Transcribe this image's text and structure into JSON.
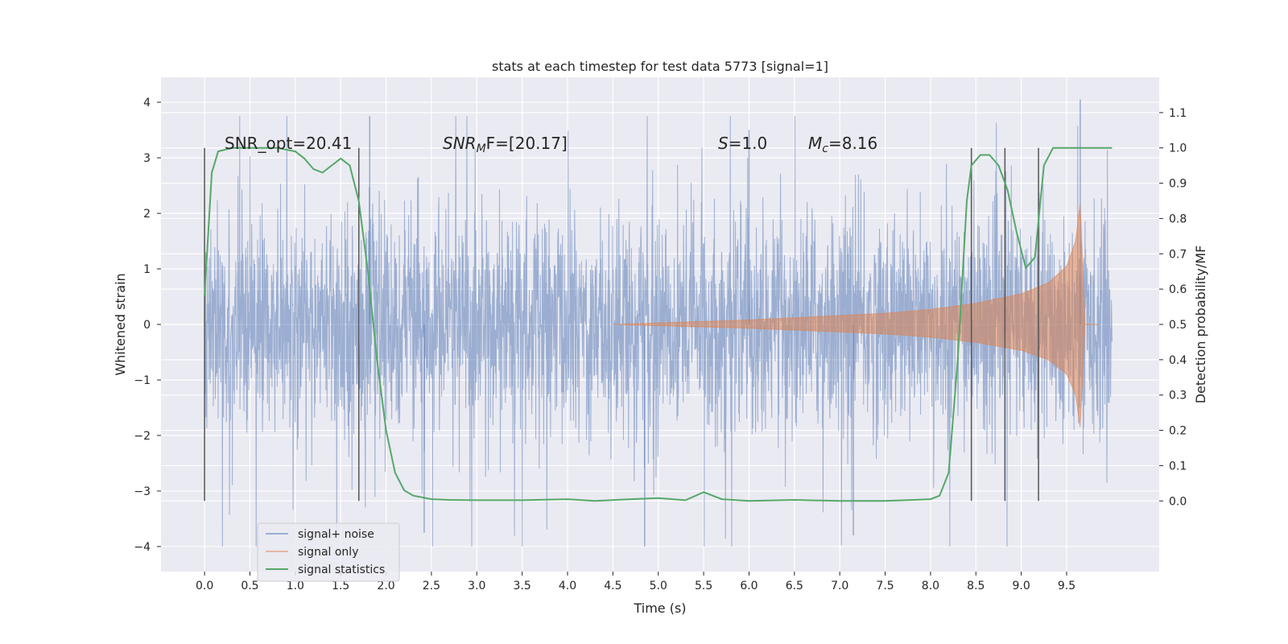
{
  "chart_data": {
    "type": "line",
    "title": "stats at each timestep for test data 5773 [signal=1]",
    "xlabel": "Time (s)",
    "ylabel": "Whitened strain",
    "y2label": "Detection probability/MF",
    "xlim": [
      -0.48,
      10.52
    ],
    "ylim": [
      -4.45,
      4.45
    ],
    "y2lim": [
      -0.2,
      1.2
    ],
    "x_ticks": [
      0.0,
      0.5,
      1.0,
      1.5,
      2.0,
      2.5,
      3.0,
      3.5,
      4.0,
      4.5,
      5.0,
      5.5,
      6.0,
      6.5,
      7.0,
      7.5,
      8.0,
      8.5,
      9.0,
      9.5
    ],
    "x_tick_labels": [
      "0.0",
      "0.5",
      "1.0",
      "1.5",
      "2.0",
      "2.5",
      "3.0",
      "3.5",
      "4.0",
      "4.5",
      "5.0",
      "5.5",
      "6.0",
      "6.5",
      "7.0",
      "7.5",
      "8.0",
      "8.5",
      "9.0",
      "9.5"
    ],
    "y_ticks": [
      4,
      3,
      2,
      1,
      0,
      -1,
      -2,
      -3,
      -4
    ],
    "y_tick_labels": [
      "4",
      "3",
      "2",
      "1",
      "0",
      "−1",
      "−2",
      "−3",
      "−4"
    ],
    "y2_ticks": [
      1.1,
      1.0,
      0.9,
      0.8,
      0.7,
      0.6,
      0.5,
      0.4,
      0.3,
      0.2,
      0.1,
      0.0
    ],
    "y2_tick_labels": [
      "1.1",
      "1.0",
      "0.9",
      "0.8",
      "0.7",
      "0.6",
      "0.5",
      "0.4",
      "0.3",
      "0.2",
      "0.1",
      "0.0"
    ],
    "grid": true,
    "legend": {
      "position": "lower-left"
    },
    "series": [
      {
        "name": "signal+ noise",
        "color": "#4c72b0",
        "axis": "left",
        "x_range": [
          0.0,
          10.0
        ],
        "band_rms": 0.95,
        "peak_max": 4.05,
        "peak_min": -4.0
      },
      {
        "name": "signal only",
        "color": "#dd8452",
        "axis": "left",
        "x_range": [
          4.5,
          9.7
        ],
        "envelope": {
          "t": [
            4.5,
            6.0,
            7.0,
            7.5,
            8.0,
            8.5,
            9.0,
            9.3,
            9.5,
            9.6,
            9.65,
            9.7
          ],
          "amp": [
            0.0,
            0.08,
            0.16,
            0.2,
            0.27,
            0.38,
            0.55,
            0.75,
            1.05,
            1.5,
            2.2,
            0.1
          ]
        }
      },
      {
        "name": "signal statistics",
        "color": "#55a868",
        "axis": "right",
        "x": [
          0.0,
          0.08,
          0.15,
          0.3,
          0.5,
          0.8,
          1.0,
          1.1,
          1.2,
          1.3,
          1.4,
          1.5,
          1.6,
          1.7,
          1.8,
          1.9,
          2.0,
          2.1,
          2.2,
          2.3,
          2.4,
          2.5,
          2.7,
          3.0,
          3.5,
          4.0,
          4.3,
          4.7,
          5.0,
          5.3,
          5.5,
          5.7,
          6.0,
          6.5,
          7.0,
          7.5,
          8.0,
          8.1,
          8.2,
          8.3,
          8.4,
          8.45,
          8.55,
          8.65,
          8.75,
          8.85,
          8.95,
          9.05,
          9.15,
          9.25,
          9.35,
          9.5,
          9.7,
          10.0
        ],
        "y": [
          0.58,
          0.93,
          0.99,
          1.0,
          1.0,
          1.0,
          0.99,
          0.97,
          0.94,
          0.93,
          0.95,
          0.97,
          0.95,
          0.85,
          0.65,
          0.4,
          0.2,
          0.08,
          0.03,
          0.015,
          0.01,
          0.005,
          0.003,
          0.002,
          0.002,
          0.005,
          0.0,
          0.005,
          0.008,
          0.002,
          0.025,
          0.005,
          0.0,
          0.003,
          0.0,
          0.0,
          0.005,
          0.015,
          0.08,
          0.4,
          0.85,
          0.95,
          0.98,
          0.98,
          0.95,
          0.88,
          0.76,
          0.66,
          0.69,
          0.95,
          1.0,
          1.0,
          1.0,
          1.0
        ]
      }
    ],
    "vertical_markers": [
      0.0,
      1.7,
      8.45,
      8.82,
      9.19
    ],
    "annotations": [
      {
        "prefix": "SNR_opt=20.41",
        "italic": "",
        "sub": "",
        "suffix": ""
      },
      {
        "prefix": "",
        "italic": "SNR",
        "sub": "M",
        "suffix": "F=[20.17]"
      },
      {
        "prefix": "",
        "italic": "S",
        "sub": "",
        "suffix": "=1.0"
      },
      {
        "prefix": "",
        "italic": "M",
        "sub": "c",
        "suffix": "=8.16"
      }
    ]
  }
}
